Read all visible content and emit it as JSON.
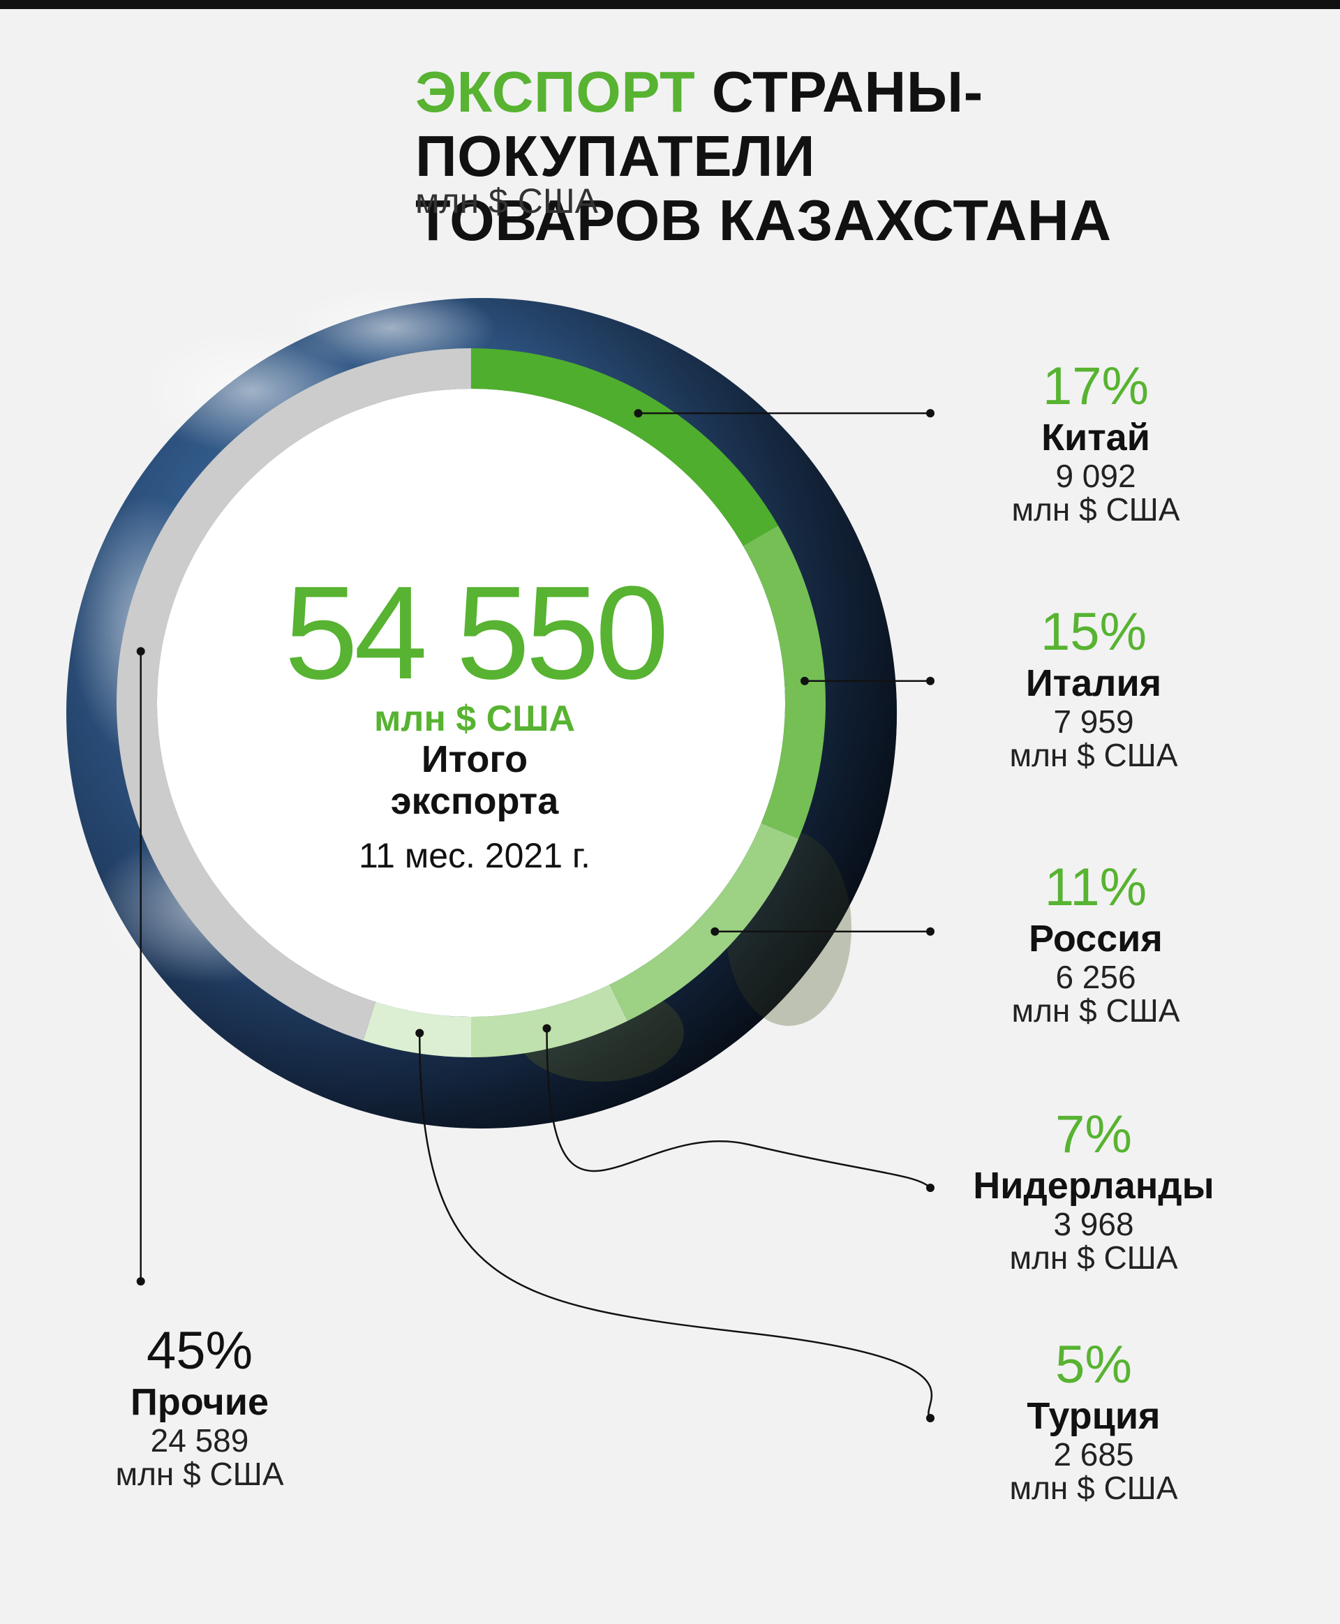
{
  "header": {
    "title_accent": "ЭКСПОРТ",
    "title_line1_rest": "СТРАНЫ-ПОКУПАТЕЛИ",
    "title_line2": "ТОВАРОВ КАЗАХСТАНА",
    "unit": "млн $ США"
  },
  "center": {
    "total": "54 550",
    "unit": "млн $ США",
    "label_line1": "Итого",
    "label_line2": "экспорта",
    "period": "11 мес. 2021 г."
  },
  "colors": {
    "accent": "#57b331",
    "china": "#4fae2d",
    "italy": "#75bf55",
    "russia": "#9dd184",
    "netherlands": "#bfe1ad",
    "turkey": "#dcefd2",
    "other": "#cccccc"
  },
  "chart_data": {
    "type": "pie",
    "title": "ЭКСПОРТ СТРАНЫ-ПОКУПАТЕЛИ ТОВАРОВ КАЗАХСТАНА",
    "unit": "млн $ США",
    "total": 54550,
    "slices": [
      {
        "name": "Китай",
        "percent": "17%",
        "value": 9092,
        "value_text": "9 092",
        "unit": "млн $ США"
      },
      {
        "name": "Италия",
        "percent": "15%",
        "value": 7959,
        "value_text": "7 959",
        "unit": "млн $ США"
      },
      {
        "name": "Россия",
        "percent": "11%",
        "value": 6256,
        "value_text": "6 256",
        "unit": "млн $ США"
      },
      {
        "name": "Нидерланды",
        "percent": "7%",
        "value": 3968,
        "value_text": "3 968",
        "unit": "млн $ США"
      },
      {
        "name": "Турция",
        "percent": "5%",
        "value": 2685,
        "value_text": "2 685",
        "unit": "млн $ США"
      },
      {
        "name": "Прочие",
        "percent": "45%",
        "value": 24589,
        "value_text": "24 589",
        "unit": "млн $ США"
      }
    ]
  }
}
